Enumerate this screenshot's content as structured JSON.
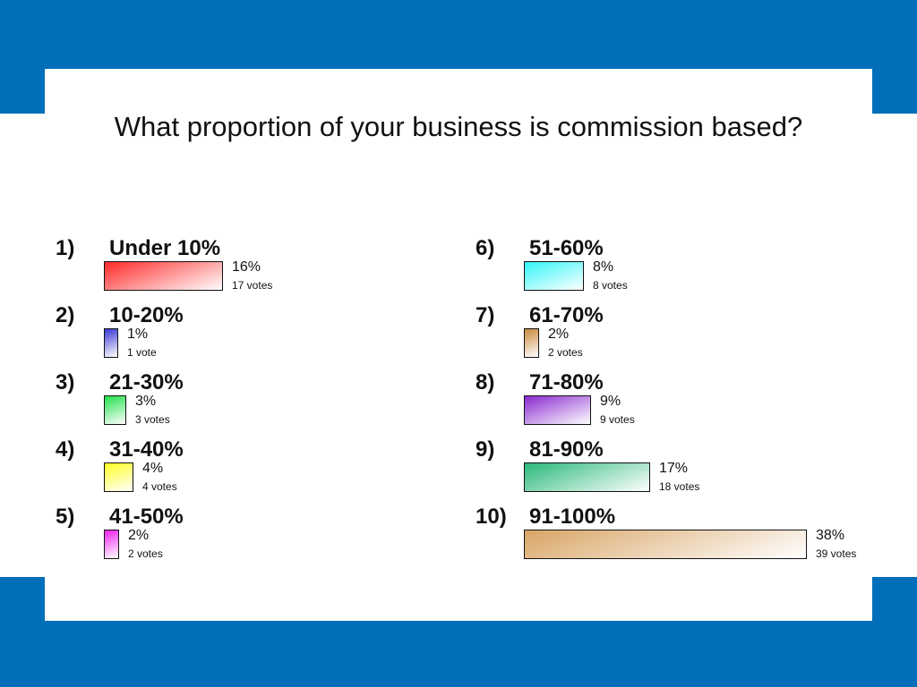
{
  "title": "What proportion of your business is commission based?",
  "colors": {
    "frame": "#006eb8",
    "background": "#ffffff"
  },
  "chart_data": {
    "type": "bar",
    "orientation": "horizontal",
    "title": "What proportion of your business is commission based?",
    "xlabel": "",
    "ylabel": "",
    "xlim": [
      0,
      38
    ],
    "legend": "none",
    "grid": false,
    "categories": [
      "Under 10%",
      "10-20%",
      "21-30%",
      "31-40%",
      "41-50%",
      "51-60%",
      "61-70%",
      "71-80%",
      "81-90%",
      "91-100%"
    ],
    "values": [
      16,
      1,
      3,
      4,
      2,
      8,
      2,
      9,
      17,
      38
    ],
    "items": [
      {
        "num": "1)",
        "label": "Under 10%",
        "value": 16,
        "pct": "16%",
        "votes": "17 votes",
        "color": "#ff2a2a"
      },
      {
        "num": "2)",
        "label": "10-20%",
        "value": 1,
        "pct": "1%",
        "votes": "1 vote",
        "color": "#3a3ad6"
      },
      {
        "num": "3)",
        "label": "21-30%",
        "value": 3,
        "pct": "3%",
        "votes": "3 votes",
        "color": "#22e04a"
      },
      {
        "num": "4)",
        "label": "31-40%",
        "value": 4,
        "pct": "4%",
        "votes": "4 votes",
        "color": "#ffff22"
      },
      {
        "num": "5)",
        "label": "41-50%",
        "value": 2,
        "pct": "2%",
        "votes": "2 votes",
        "color": "#ee22ee"
      },
      {
        "num": "6)",
        "label": "51-60%",
        "value": 8,
        "pct": "8%",
        "votes": "8 votes",
        "color": "#33f5f8"
      },
      {
        "num": "7)",
        "label": "61-70%",
        "value": 2,
        "pct": "2%",
        "votes": "2 votes",
        "color": "#c98a3c"
      },
      {
        "num": "8)",
        "label": "71-80%",
        "value": 9,
        "pct": "9%",
        "votes": "9 votes",
        "color": "#8a2ad0"
      },
      {
        "num": "9)",
        "label": "81-90%",
        "value": 17,
        "pct": "17%",
        "votes": "18 votes",
        "color": "#2ab87a"
      },
      {
        "num": "10)",
        "label": "91-100%",
        "value": 38,
        "pct": "38%",
        "votes": "39 votes",
        "color": "#d9a566"
      }
    ]
  }
}
